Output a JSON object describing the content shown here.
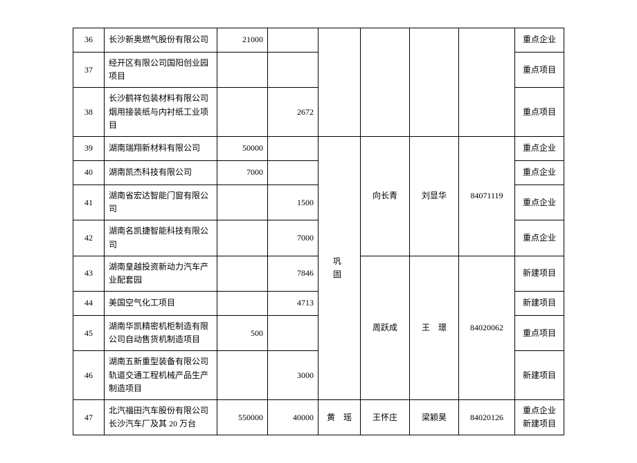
{
  "group_label": "巩　固",
  "rows": [
    {
      "idx": "36",
      "name": "长沙新奥燃气股份有限公司",
      "n1": "21000",
      "n2": "",
      "p1": "",
      "p2": "",
      "tel": "",
      "tag": "重点企业"
    },
    {
      "idx": "37",
      "name": "经开区有限公司国阳创业园项目",
      "n1": "",
      "n2": "",
      "p1": "",
      "p2": "",
      "tel": "",
      "tag": "重点项目"
    },
    {
      "idx": "38",
      "name": "长沙鹤祥包装材料有限公司烟用接装纸与内衬纸工业项目",
      "n1": "",
      "n2": "2672",
      "p1": "",
      "p2": "",
      "tel": "",
      "tag": "重点项目"
    },
    {
      "idx": "39",
      "name": "湖南瑞翔新材料有限公司",
      "n1": "50000",
      "n2": "",
      "p1": "",
      "p2": "",
      "tel": "",
      "tag": "重点企业"
    },
    {
      "idx": "40",
      "name": "湖南凯杰科技有限公司",
      "n1": "7000",
      "n2": "",
      "p1": "",
      "p2": "",
      "tel": "",
      "tag": "重点企业"
    },
    {
      "idx": "41",
      "name": "湖南省宏达智能门窗有限公司",
      "n1": "",
      "n2": "1500",
      "p1": "向长青",
      "p2": "刘显华",
      "tel": "84071119",
      "tag": "重点企业"
    },
    {
      "idx": "42",
      "name": "湖南名凯捷智能科技有限公司",
      "n1": "",
      "n2": "7000",
      "p1": "",
      "p2": "",
      "tel": "",
      "tag": "重点企业"
    },
    {
      "idx": "43",
      "name": "湖南皇越投资新动力汽车产业配套园",
      "n1": "",
      "n2": "7846",
      "p1": "",
      "p2": "",
      "tel": "",
      "tag": "新建项目"
    },
    {
      "idx": "44",
      "name": "美国空气化工项目",
      "n1": "",
      "n2": "4713",
      "p1": "",
      "p2": "",
      "tel": "",
      "tag": "新建项目"
    },
    {
      "idx": "45",
      "name": "湖南华凯精密机柜制造有限公司自动售货机制造项目",
      "n1": "500",
      "n2": "",
      "p1": "周跃成",
      "p2": "王　璟",
      "tel": "84020062",
      "tag": "重点项目"
    },
    {
      "idx": "46",
      "name": "湖南五新重型装备有限公司轨道交通工程机械产品生产制造项目",
      "n1": "",
      "n2": "3000",
      "p1": "",
      "p2": "",
      "tel": "",
      "tag": "新建项目"
    },
    {
      "idx": "47",
      "name": "北汽福田汽车股份有限公司长沙汽车厂及其 20 万台",
      "n1": "550000",
      "n2": "40000",
      "p1": "王怀庄",
      "p2": "梁颖昊",
      "tel": "84020126",
      "tag": "重点企业\n新建项目",
      "g2": "黄　瑶"
    }
  ]
}
